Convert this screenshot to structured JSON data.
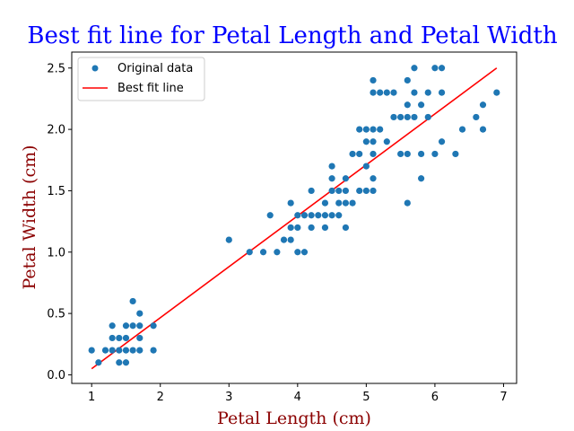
{
  "chart_data": {
    "type": "scatter",
    "title": "Best fit line for Petal Length and Petal Width",
    "xlabel": "Petal Length (cm)",
    "ylabel": "Petal Width (cm)",
    "xlim": [
      0.71,
      7.19
    ],
    "ylim": [
      -0.07,
      2.63
    ],
    "xticks": [
      1,
      2,
      3,
      4,
      5,
      6,
      7
    ],
    "yticks": [
      0.0,
      0.5,
      1.0,
      1.5,
      2.0,
      2.5
    ],
    "xtick_labels": [
      "1",
      "2",
      "3",
      "4",
      "5",
      "6",
      "7"
    ],
    "ytick_labels": [
      "0.0",
      "0.5",
      "1.0",
      "1.5",
      "2.0",
      "2.5"
    ],
    "grid": false,
    "legend_position": "top-left",
    "colors": {
      "title": "#0000ff",
      "axis_label": "#8b0000",
      "points": "#1f77b4",
      "fit_line": "#ff0000"
    },
    "series": [
      {
        "name": "Original data",
        "kind": "scatter",
        "points": [
          [
            1.0,
            0.2
          ],
          [
            1.1,
            0.1
          ],
          [
            1.2,
            0.2
          ],
          [
            1.3,
            0.2
          ],
          [
            1.3,
            0.3
          ],
          [
            1.3,
            0.4
          ],
          [
            1.4,
            0.1
          ],
          [
            1.4,
            0.2
          ],
          [
            1.4,
            0.3
          ],
          [
            1.5,
            0.1
          ],
          [
            1.5,
            0.2
          ],
          [
            1.5,
            0.3
          ],
          [
            1.5,
            0.4
          ],
          [
            1.6,
            0.2
          ],
          [
            1.6,
            0.4
          ],
          [
            1.6,
            0.6
          ],
          [
            1.7,
            0.2
          ],
          [
            1.7,
            0.3
          ],
          [
            1.7,
            0.4
          ],
          [
            1.7,
            0.5
          ],
          [
            1.9,
            0.2
          ],
          [
            1.9,
            0.4
          ],
          [
            3.0,
            1.1
          ],
          [
            3.3,
            1.0
          ],
          [
            3.5,
            1.0
          ],
          [
            3.6,
            1.3
          ],
          [
            3.7,
            1.0
          ],
          [
            3.8,
            1.1
          ],
          [
            3.9,
            1.1
          ],
          [
            3.9,
            1.2
          ],
          [
            3.9,
            1.4
          ],
          [
            4.0,
            1.0
          ],
          [
            4.0,
            1.2
          ],
          [
            4.0,
            1.3
          ],
          [
            4.1,
            1.0
          ],
          [
            4.1,
            1.3
          ],
          [
            4.2,
            1.2
          ],
          [
            4.2,
            1.3
          ],
          [
            4.2,
            1.5
          ],
          [
            4.3,
            1.3
          ],
          [
            4.4,
            1.2
          ],
          [
            4.4,
            1.3
          ],
          [
            4.4,
            1.4
          ],
          [
            4.5,
            1.3
          ],
          [
            4.5,
            1.5
          ],
          [
            4.5,
            1.6
          ],
          [
            4.5,
            1.7
          ],
          [
            4.6,
            1.3
          ],
          [
            4.6,
            1.4
          ],
          [
            4.6,
            1.5
          ],
          [
            4.7,
            1.2
          ],
          [
            4.7,
            1.4
          ],
          [
            4.7,
            1.5
          ],
          [
            4.7,
            1.6
          ],
          [
            4.8,
            1.4
          ],
          [
            4.8,
            1.8
          ],
          [
            4.9,
            1.5
          ],
          [
            4.9,
            1.8
          ],
          [
            4.9,
            2.0
          ],
          [
            5.0,
            1.5
          ],
          [
            5.0,
            1.7
          ],
          [
            5.0,
            1.9
          ],
          [
            5.0,
            2.0
          ],
          [
            5.1,
            1.5
          ],
          [
            5.1,
            1.6
          ],
          [
            5.1,
            1.8
          ],
          [
            5.1,
            1.9
          ],
          [
            5.1,
            2.0
          ],
          [
            5.1,
            2.3
          ],
          [
            5.1,
            2.4
          ],
          [
            5.2,
            2.0
          ],
          [
            5.2,
            2.3
          ],
          [
            5.3,
            1.9
          ],
          [
            5.3,
            2.3
          ],
          [
            5.4,
            2.1
          ],
          [
            5.4,
            2.3
          ],
          [
            5.5,
            1.8
          ],
          [
            5.5,
            2.1
          ],
          [
            5.6,
            1.4
          ],
          [
            5.6,
            1.8
          ],
          [
            5.6,
            2.1
          ],
          [
            5.6,
            2.2
          ],
          [
            5.6,
            2.4
          ],
          [
            5.7,
            2.1
          ],
          [
            5.7,
            2.3
          ],
          [
            5.7,
            2.5
          ],
          [
            5.8,
            1.6
          ],
          [
            5.8,
            1.8
          ],
          [
            5.8,
            2.2
          ],
          [
            5.9,
            2.1
          ],
          [
            5.9,
            2.3
          ],
          [
            6.0,
            1.8
          ],
          [
            6.0,
            2.5
          ],
          [
            6.1,
            1.9
          ],
          [
            6.1,
            2.3
          ],
          [
            6.1,
            2.5
          ],
          [
            6.3,
            1.8
          ],
          [
            6.4,
            2.0
          ],
          [
            6.6,
            2.1
          ],
          [
            6.7,
            2.0
          ],
          [
            6.7,
            2.2
          ],
          [
            6.9,
            2.3
          ]
        ]
      },
      {
        "name": "Best fit line",
        "kind": "line",
        "points": [
          [
            1.0,
            0.05
          ],
          [
            6.9,
            2.5
          ]
        ]
      }
    ]
  }
}
